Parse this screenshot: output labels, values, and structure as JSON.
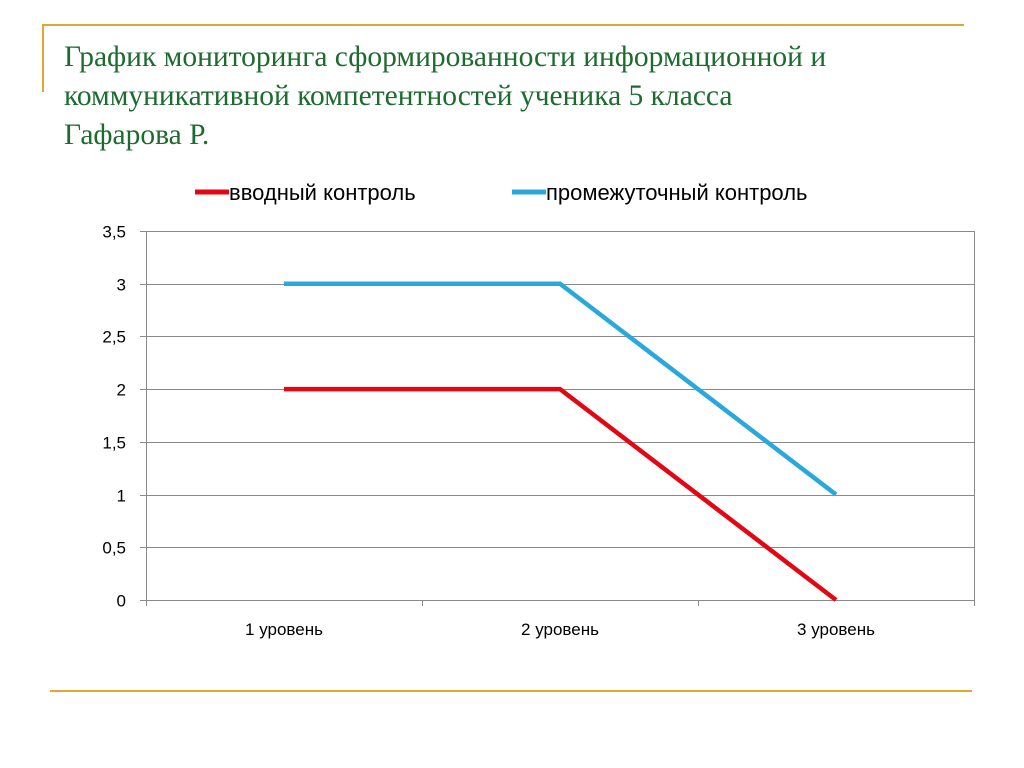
{
  "slide": {
    "title_lines": [
      "График мониторинга сформированности информационной и",
      "коммуникативной компетентностей ученика 5 класса",
      "Гафарова Р."
    ],
    "accent_color": "#e0a82e",
    "title_color": "#1d6b2f"
  },
  "chart_data": {
    "type": "line",
    "title": "",
    "xlabel": "",
    "ylabel": "",
    "categories": [
      "1 уровень",
      "2 уровень",
      "3 уровень"
    ],
    "series": [
      {
        "name": "вводный контроль",
        "values": [
          2,
          2,
          0
        ],
        "color": "#e30613"
      },
      {
        "name": "промежуточный контроль",
        "values": [
          3,
          3,
          1
        ],
        "color": "#2aa8dc"
      }
    ],
    "ylim": [
      0,
      3.5
    ],
    "yticks": [
      0,
      0.5,
      1,
      1.5,
      2,
      2.5,
      3,
      3.5
    ],
    "ytick_labels": [
      "0",
      "0,5",
      "1",
      "1,5",
      "2",
      "2,5",
      "3",
      "3,5"
    ],
    "grid": true,
    "legend_position": "top"
  }
}
